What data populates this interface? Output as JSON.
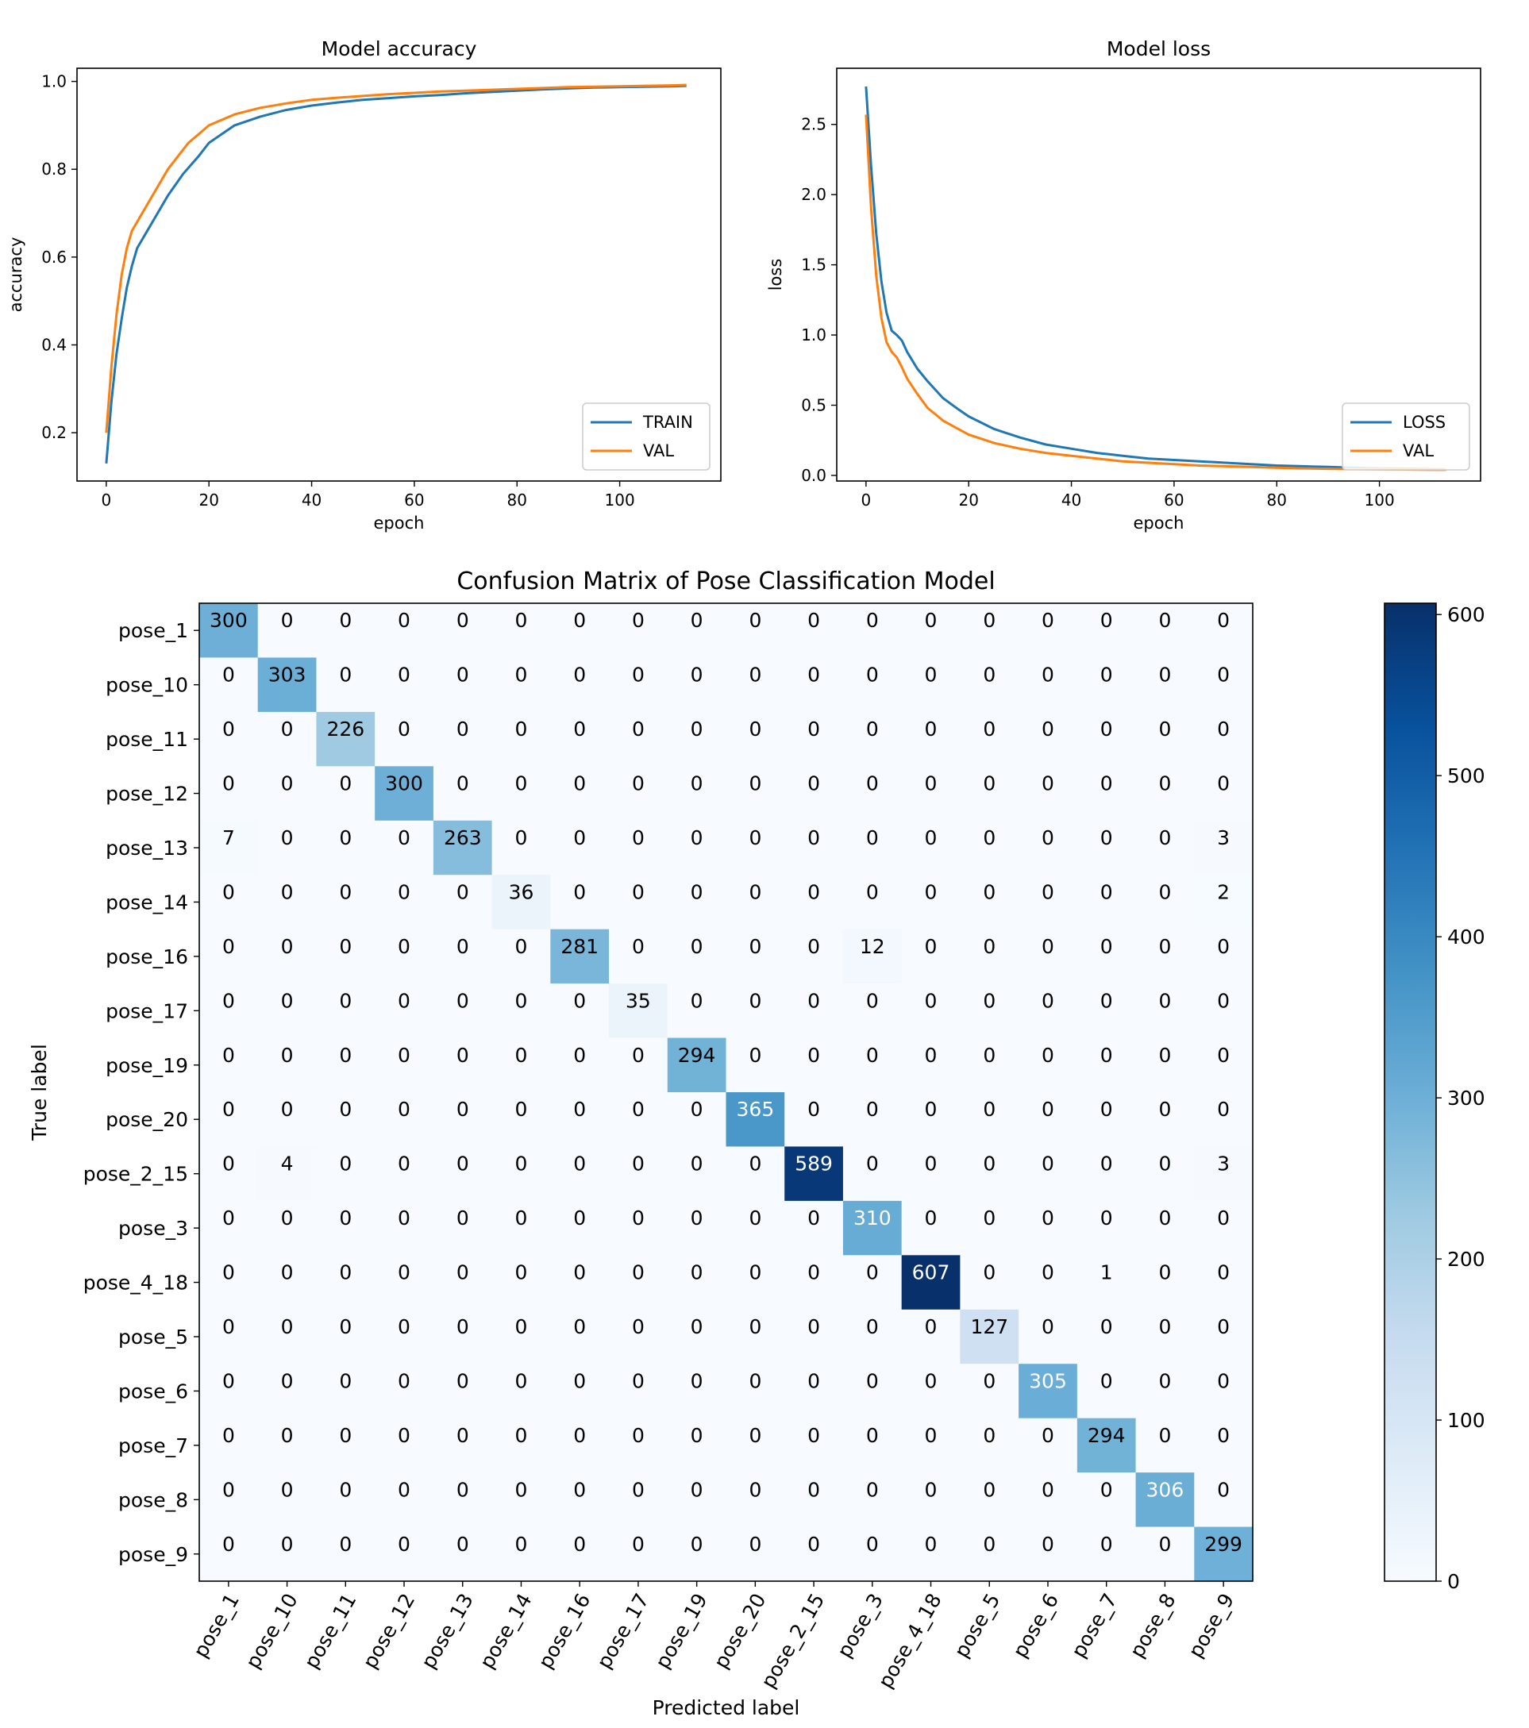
{
  "chart_data": [
    {
      "type": "line",
      "title": "Model accuracy",
      "xlabel": "epoch",
      "ylabel": "accuracy",
      "xlim": [
        -5.7,
        119.7
      ],
      "ylim": [
        0.09,
        1.03
      ],
      "xticks": [
        0,
        20,
        40,
        60,
        80,
        100
      ],
      "yticks": [
        0.2,
        0.4,
        0.6,
        0.8,
        1.0
      ],
      "legend_position": "lower-right",
      "grid": false,
      "series": [
        {
          "name": "TRAIN",
          "color": "#1f77b4",
          "points": [
            [
              0,
              0.13
            ],
            [
              1,
              0.27
            ],
            [
              2,
              0.38
            ],
            [
              3,
              0.46
            ],
            [
              4,
              0.53
            ],
            [
              5,
              0.58
            ],
            [
              6,
              0.62
            ],
            [
              7,
              0.64
            ],
            [
              8,
              0.66
            ],
            [
              10,
              0.7
            ],
            [
              12,
              0.74
            ],
            [
              15,
              0.79
            ],
            [
              18,
              0.83
            ],
            [
              20,
              0.86
            ],
            [
              25,
              0.9
            ],
            [
              30,
              0.92
            ],
            [
              35,
              0.935
            ],
            [
              40,
              0.945
            ],
            [
              45,
              0.952
            ],
            [
              50,
              0.958
            ],
            [
              55,
              0.962
            ],
            [
              60,
              0.966
            ],
            [
              65,
              0.969
            ],
            [
              70,
              0.973
            ],
            [
              75,
              0.976
            ],
            [
              80,
              0.979
            ],
            [
              85,
              0.982
            ],
            [
              90,
              0.984
            ],
            [
              95,
              0.986
            ],
            [
              100,
              0.987
            ],
            [
              105,
              0.988
            ],
            [
              110,
              0.989
            ],
            [
              113,
              0.99
            ]
          ]
        },
        {
          "name": "VAL",
          "color": "#ff7f0e",
          "points": [
            [
              0,
              0.2
            ],
            [
              1,
              0.35
            ],
            [
              2,
              0.47
            ],
            [
              3,
              0.56
            ],
            [
              4,
              0.62
            ],
            [
              5,
              0.66
            ],
            [
              6,
              0.68
            ],
            [
              7,
              0.7
            ],
            [
              8,
              0.72
            ],
            [
              10,
              0.76
            ],
            [
              12,
              0.8
            ],
            [
              14,
              0.83
            ],
            [
              16,
              0.86
            ],
            [
              18,
              0.88
            ],
            [
              20,
              0.9
            ],
            [
              25,
              0.925
            ],
            [
              30,
              0.94
            ],
            [
              35,
              0.95
            ],
            [
              40,
              0.958
            ],
            [
              45,
              0.963
            ],
            [
              50,
              0.967
            ],
            [
              55,
              0.971
            ],
            [
              60,
              0.974
            ],
            [
              65,
              0.977
            ],
            [
              70,
              0.979
            ],
            [
              75,
              0.981
            ],
            [
              80,
              0.983
            ],
            [
              85,
              0.985
            ],
            [
              90,
              0.987
            ],
            [
              95,
              0.988
            ],
            [
              100,
              0.989
            ],
            [
              105,
              0.99
            ],
            [
              110,
              0.991
            ],
            [
              113,
              0.992
            ]
          ]
        }
      ]
    },
    {
      "type": "line",
      "title": "Model loss",
      "xlabel": "epoch",
      "ylabel": "loss",
      "xlim": [
        -5.7,
        119.7
      ],
      "ylim": [
        -0.04,
        2.9
      ],
      "xticks": [
        0,
        20,
        40,
        60,
        80,
        100
      ],
      "yticks": [
        0.0,
        0.5,
        1.0,
        1.5,
        2.0,
        2.5
      ],
      "ytick_labels": [
        "0.0",
        "0.5",
        "1.0",
        "1.5",
        "2.0",
        "2.5"
      ],
      "legend_position": "lower-right",
      "grid": false,
      "series": [
        {
          "name": "LOSS",
          "color": "#1f77b4",
          "points": [
            [
              0,
              2.77
            ],
            [
              1,
              2.2
            ],
            [
              2,
              1.72
            ],
            [
              3,
              1.38
            ],
            [
              4,
              1.16
            ],
            [
              5,
              1.03
            ],
            [
              6,
              1.0
            ],
            [
              7,
              0.96
            ],
            [
              8,
              0.88
            ],
            [
              10,
              0.76
            ],
            [
              12,
              0.67
            ],
            [
              15,
              0.55
            ],
            [
              18,
              0.47
            ],
            [
              20,
              0.42
            ],
            [
              25,
              0.33
            ],
            [
              30,
              0.27
            ],
            [
              35,
              0.22
            ],
            [
              40,
              0.19
            ],
            [
              45,
              0.16
            ],
            [
              50,
              0.14
            ],
            [
              55,
              0.12
            ],
            [
              60,
              0.11
            ],
            [
              65,
              0.1
            ],
            [
              70,
              0.09
            ],
            [
              75,
              0.08
            ],
            [
              80,
              0.07
            ],
            [
              85,
              0.065
            ],
            [
              90,
              0.06
            ],
            [
              95,
              0.055
            ],
            [
              100,
              0.05
            ],
            [
              105,
              0.048
            ],
            [
              110,
              0.045
            ],
            [
              113,
              0.043
            ]
          ]
        },
        {
          "name": "VAL",
          "color": "#ff7f0e",
          "points": [
            [
              0,
              2.57
            ],
            [
              1,
              1.9
            ],
            [
              2,
              1.42
            ],
            [
              3,
              1.12
            ],
            [
              4,
              0.95
            ],
            [
              5,
              0.88
            ],
            [
              6,
              0.84
            ],
            [
              7,
              0.77
            ],
            [
              8,
              0.69
            ],
            [
              10,
              0.58
            ],
            [
              12,
              0.48
            ],
            [
              15,
              0.39
            ],
            [
              18,
              0.33
            ],
            [
              20,
              0.29
            ],
            [
              25,
              0.23
            ],
            [
              30,
              0.19
            ],
            [
              35,
              0.16
            ],
            [
              40,
              0.14
            ],
            [
              45,
              0.12
            ],
            [
              50,
              0.1
            ],
            [
              55,
              0.09
            ],
            [
              60,
              0.08
            ],
            [
              65,
              0.07
            ],
            [
              70,
              0.065
            ],
            [
              75,
              0.06
            ],
            [
              80,
              0.055
            ],
            [
              85,
              0.05
            ],
            [
              90,
              0.047
            ],
            [
              95,
              0.045
            ],
            [
              100,
              0.043
            ],
            [
              105,
              0.042
            ],
            [
              110,
              0.04
            ],
            [
              113,
              0.04
            ]
          ]
        }
      ]
    },
    {
      "type": "heatmap",
      "title": "Confusion Matrix of Pose Classification Model",
      "xlabel": "Predicted label",
      "ylabel": "True label",
      "labels": [
        "pose_1",
        "pose_10",
        "pose_11",
        "pose_12",
        "pose_13",
        "pose_14",
        "pose_16",
        "pose_17",
        "pose_19",
        "pose_20",
        "pose_2_15",
        "pose_3",
        "pose_4_18",
        "pose_5",
        "pose_6",
        "pose_7",
        "pose_8",
        "pose_9"
      ],
      "matrix": [
        [
          300,
          0,
          0,
          0,
          0,
          0,
          0,
          0,
          0,
          0,
          0,
          0,
          0,
          0,
          0,
          0,
          0,
          0
        ],
        [
          0,
          303,
          0,
          0,
          0,
          0,
          0,
          0,
          0,
          0,
          0,
          0,
          0,
          0,
          0,
          0,
          0,
          0
        ],
        [
          0,
          0,
          226,
          0,
          0,
          0,
          0,
          0,
          0,
          0,
          0,
          0,
          0,
          0,
          0,
          0,
          0,
          0
        ],
        [
          0,
          0,
          0,
          300,
          0,
          0,
          0,
          0,
          0,
          0,
          0,
          0,
          0,
          0,
          0,
          0,
          0,
          0
        ],
        [
          7,
          0,
          0,
          0,
          263,
          0,
          0,
          0,
          0,
          0,
          0,
          0,
          0,
          0,
          0,
          0,
          0,
          3
        ],
        [
          0,
          0,
          0,
          0,
          0,
          36,
          0,
          0,
          0,
          0,
          0,
          0,
          0,
          0,
          0,
          0,
          0,
          2
        ],
        [
          0,
          0,
          0,
          0,
          0,
          0,
          281,
          0,
          0,
          0,
          0,
          12,
          0,
          0,
          0,
          0,
          0,
          0
        ],
        [
          0,
          0,
          0,
          0,
          0,
          0,
          0,
          35,
          0,
          0,
          0,
          0,
          0,
          0,
          0,
          0,
          0,
          0
        ],
        [
          0,
          0,
          0,
          0,
          0,
          0,
          0,
          0,
          294,
          0,
          0,
          0,
          0,
          0,
          0,
          0,
          0,
          0
        ],
        [
          0,
          0,
          0,
          0,
          0,
          0,
          0,
          0,
          0,
          365,
          0,
          0,
          0,
          0,
          0,
          0,
          0,
          0
        ],
        [
          0,
          4,
          0,
          0,
          0,
          0,
          0,
          0,
          0,
          0,
          589,
          0,
          0,
          0,
          0,
          0,
          0,
          3
        ],
        [
          0,
          0,
          0,
          0,
          0,
          0,
          0,
          0,
          0,
          0,
          0,
          310,
          0,
          0,
          0,
          0,
          0,
          0
        ],
        [
          0,
          0,
          0,
          0,
          0,
          0,
          0,
          0,
          0,
          0,
          0,
          0,
          607,
          0,
          0,
          1,
          0,
          0
        ],
        [
          0,
          0,
          0,
          0,
          0,
          0,
          0,
          0,
          0,
          0,
          0,
          0,
          0,
          127,
          0,
          0,
          0,
          0
        ],
        [
          0,
          0,
          0,
          0,
          0,
          0,
          0,
          0,
          0,
          0,
          0,
          0,
          0,
          0,
          305,
          0,
          0,
          0
        ],
        [
          0,
          0,
          0,
          0,
          0,
          0,
          0,
          0,
          0,
          0,
          0,
          0,
          0,
          0,
          0,
          294,
          0,
          0
        ],
        [
          0,
          0,
          0,
          0,
          0,
          0,
          0,
          0,
          0,
          0,
          0,
          0,
          0,
          0,
          0,
          0,
          306,
          0
        ],
        [
          0,
          0,
          0,
          0,
          0,
          0,
          0,
          0,
          0,
          0,
          0,
          0,
          0,
          0,
          0,
          0,
          0,
          299
        ]
      ],
      "colormap": "Blues",
      "colorbar": {
        "min": 0,
        "max": 607,
        "ticks": [
          0,
          100,
          200,
          300,
          400,
          500,
          600
        ]
      }
    }
  ]
}
